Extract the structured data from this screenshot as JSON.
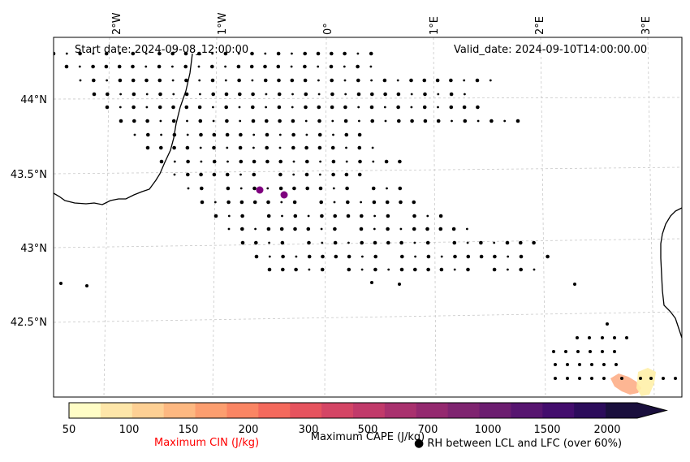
{
  "map": {
    "start_label": "Start date: 2024-09-08_12:00:00",
    "valid_label": "Valid_date: 2024-09-10T14:00:00.00",
    "lon_ticks": [
      "2°W",
      "1°W",
      "0°",
      "1°E",
      "2°E",
      "3°E"
    ],
    "lat_ticks": [
      "44°N",
      "43.5°N",
      "43°N",
      "42.5°N"
    ],
    "colors": {
      "coast": "#000000",
      "grid": "#c8c8c8",
      "rh_marker": "#000000",
      "cape_marker": "#7f007f"
    }
  },
  "colorbar": {
    "tick_labels": [
      "50",
      "100",
      "150",
      "200",
      "300",
      "500",
      "700",
      "1000",
      "1500",
      "2000"
    ],
    "colors": [
      "#fffdc6",
      "#fee6a9",
      "#fed094",
      "#fdb881",
      "#fc9e6f",
      "#fa8563",
      "#f4695c",
      "#e6535e",
      "#d44565",
      "#c13a6a",
      "#a9316e",
      "#94296f",
      "#7f2470",
      "#6c1d70",
      "#571570",
      "#430d6d",
      "#2c0c5b",
      "#1a0f3d"
    ],
    "cape_label": "Maximum CAPE (J/kg)",
    "cin_label": "Maximum CIN (J/kg)",
    "cin_color": "#ff0000",
    "rh_label": "RH between LCL and LFC (over 60%)"
  }
}
